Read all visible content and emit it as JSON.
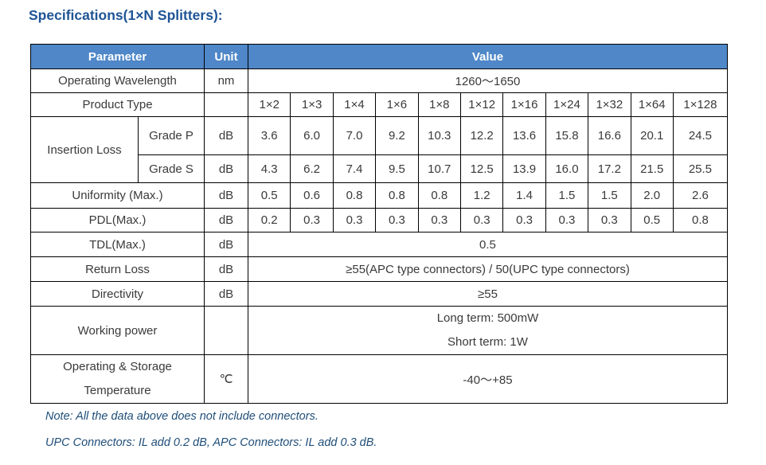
{
  "page": {
    "title": "Specifications(1×N Splitters):",
    "note1": "Note: All the data above does not include connectors.",
    "note2": "UPC Connectors: IL add 0.2 dB, APC Connectors: IL add 0.3 dB."
  },
  "colors": {
    "header_bg": "#4F87C8",
    "header_text": "#FFFFFF",
    "title_text": "#1F5496",
    "note_text": "#1F4E79",
    "cell_text": "#3A3A3A",
    "border": "#000000"
  },
  "table": {
    "headers": {
      "parameter": "Parameter",
      "unit": "Unit",
      "value": "Value"
    },
    "product_types": [
      "1×2",
      "1×3",
      "1×4",
      "1×6",
      "1×8",
      "1×12",
      "1×16",
      "1×24",
      "1×32",
      "1×64",
      "1×128"
    ],
    "rows": {
      "operating_wavelength": {
        "label": "Operating Wavelength",
        "unit": "nm",
        "value": "1260～1650"
      },
      "product_type": {
        "label": "Product Type",
        "unit": ""
      },
      "insertion_loss": {
        "label": "Insertion Loss",
        "grade_p": {
          "label": "Grade P",
          "unit": "dB",
          "values": [
            "3.6",
            "6.0",
            "7.0",
            "9.2",
            "10.3",
            "12.2",
            "13.6",
            "15.8",
            "16.6",
            "20.1",
            "24.5"
          ]
        },
        "grade_s": {
          "label": "Grade S",
          "unit": "dB",
          "values": [
            "4.3",
            "6.2",
            "7.4",
            "9.5",
            "10.7",
            "12.5",
            "13.9",
            "16.0",
            "17.2",
            "21.5",
            "25.5"
          ]
        }
      },
      "uniformity": {
        "label": "Uniformity (Max.)",
        "unit": "dB",
        "values": [
          "0.5",
          "0.6",
          "0.8",
          "0.8",
          "0.8",
          "1.2",
          "1.4",
          "1.5",
          "1.5",
          "2.0",
          "2.6"
        ]
      },
      "pdl": {
        "label": "PDL(Max.)",
        "unit": "dB",
        "values": [
          "0.2",
          "0.3",
          "0.3",
          "0.3",
          "0.3",
          "0.3",
          "0.3",
          "0.3",
          "0.3",
          "0.5",
          "0.8"
        ]
      },
      "tdl": {
        "label": "TDL(Max.)",
        "unit": "dB",
        "value": "0.5"
      },
      "return_loss": {
        "label": "Return Loss",
        "unit": "dB",
        "value": "≥55(APC type connectors) / 50(UPC type connectors)"
      },
      "directivity": {
        "label": "Directivity",
        "unit": "dB",
        "value": "≥55"
      },
      "working_power": {
        "label": "Working power",
        "unit": "",
        "value_line1": "Long term: 500mW",
        "value_line2": "Short term: 1W"
      },
      "temperature": {
        "label_line1": "Operating & Storage",
        "label_line2": "Temperature",
        "unit": "℃",
        "value": "-40～+85"
      }
    }
  }
}
